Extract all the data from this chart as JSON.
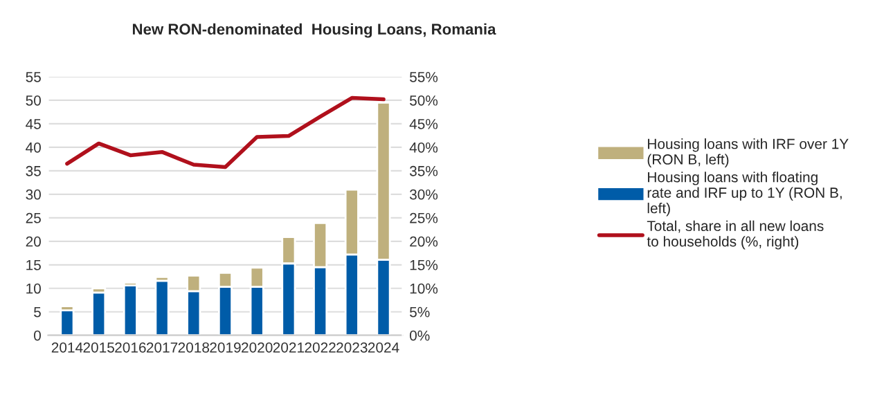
{
  "chart_data": {
    "type": "bar",
    "title": "New RON-denominated  Housing Loans, Romania",
    "categories": [
      "2014",
      "2015",
      "2016",
      "2017",
      "2018",
      "2019",
      "2020",
      "2021",
      "2022",
      "2023",
      "2024"
    ],
    "stacked": true,
    "series": [
      {
        "name": "Housing loans with floating rate and IRF up to 1Y (RON B, left)",
        "color": "#005ca8",
        "values": [
          5.3,
          9.1,
          10.6,
          11.6,
          9.4,
          10.3,
          10.3,
          15.3,
          14.5,
          17.2,
          16.1
        ]
      },
      {
        "name": "Housing loans with IRF over 1Y\n(RON B, left)",
        "color": "#bfb07d",
        "values": [
          0.9,
          0.9,
          0.6,
          0.8,
          3.3,
          3.0,
          4.1,
          5.6,
          9.4,
          13.8,
          33.4
        ]
      },
      {
        "name": "Total, share in all new loans to households (%, right)",
        "type": "line",
        "axis": "y2",
        "color": "#b0101c",
        "values": [
          36.5,
          40.8,
          38.3,
          39.0,
          36.3,
          35.8,
          42.2,
          42.4,
          46.5,
          50.5,
          50.2
        ]
      }
    ],
    "ylim": [
      0,
      55
    ],
    "yticks": [
      0,
      5,
      10,
      15,
      20,
      25,
      30,
      35,
      40,
      45,
      50,
      55
    ],
    "y2lim": [
      0,
      55
    ],
    "y2ticks": [
      {
        "value": 0,
        "label": "0%"
      },
      {
        "value": 5,
        "label": "5%"
      },
      {
        "value": 10,
        "label": "10%"
      },
      {
        "value": 15,
        "label": "15%"
      },
      {
        "value": 20,
        "label": "20%"
      },
      {
        "value": 25,
        "label": "25%"
      },
      {
        "value": 30,
        "label": "30%"
      },
      {
        "value": 35,
        "label": "35%"
      },
      {
        "value": 40,
        "label": "40%"
      },
      {
        "value": 45,
        "label": "45%"
      },
      {
        "value": 50,
        "label": "50%"
      },
      {
        "value": 55,
        "label": "55%"
      }
    ],
    "grid": "y",
    "legend": "right"
  }
}
